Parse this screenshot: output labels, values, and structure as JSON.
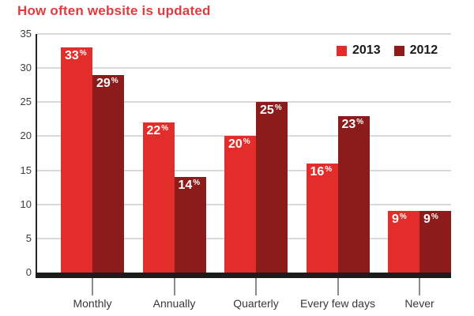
{
  "page": {
    "title": "How often website is updated"
  },
  "chart_data": {
    "type": "bar",
    "title": "How often website is updated",
    "categories": [
      "Monthly",
      "Annually",
      "Quarterly",
      "Every few days",
      "Never"
    ],
    "series": [
      {
        "name": "2013",
        "color": "#e32d2a",
        "values": [
          33,
          22,
          20,
          16,
          9
        ]
      },
      {
        "name": "2012",
        "color": "#8c1b1c",
        "values": [
          29,
          14,
          25,
          23,
          9
        ]
      }
    ],
    "value_suffix": "%",
    "ylim": [
      0,
      35
    ],
    "ytick_step": 5,
    "grid": true,
    "legend_position": "top-right",
    "xlabel": "",
    "ylabel": ""
  },
  "colors": {
    "title_text": "#e23a3e",
    "bar_2013": "#e32d2a",
    "bar_2012": "#8c1b1c",
    "baseline": "#1c1c1c",
    "axis_line": "#262626",
    "gridline": "#d9d9d9",
    "axis_text": "#3d3d3d",
    "bar_label_text": "#ffffff"
  }
}
